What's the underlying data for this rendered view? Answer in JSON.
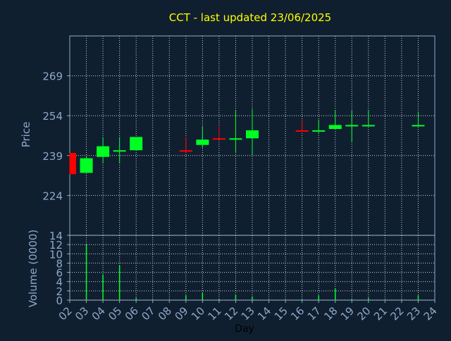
{
  "chart_data": {
    "type": "candlestick",
    "title": "CCT - last updated 23/06/2025",
    "xlabel": "Day",
    "colors": {
      "background": "#0f1f30",
      "title": "#ffff00",
      "axis_text": "#8fa8c8",
      "grid": "#c8d4e0",
      "up": "#00ff22",
      "down": "#ff0000",
      "volume": "#00ff22"
    },
    "price_panel": {
      "ylabel": "Price",
      "ylim": [
        209,
        284
      ],
      "yticks": [
        224,
        239,
        254,
        269
      ],
      "grid": true
    },
    "volume_panel": {
      "ylabel": "Volume (0000)",
      "ylim": [
        0,
        14
      ],
      "yticks": [
        0,
        2,
        4,
        6,
        8,
        10,
        12,
        14
      ],
      "grid": true
    },
    "x_categories": [
      "02",
      "03",
      "04",
      "05",
      "06",
      "07",
      "08",
      "09",
      "10",
      "11",
      "12",
      "13",
      "14",
      "15",
      "16",
      "17",
      "18",
      "19",
      "20",
      "21",
      "22",
      "23",
      "24"
    ],
    "candles": [
      {
        "day": "02",
        "open": 240.0,
        "high": 240.0,
        "low": 232.0,
        "close": 232.0,
        "volume": 0.0
      },
      {
        "day": "03",
        "open": 232.5,
        "high": 238.5,
        "low": 232.5,
        "close": 238.0,
        "volume": 12.0
      },
      {
        "day": "04",
        "open": 238.5,
        "high": 246.0,
        "low": 236.0,
        "close": 242.5,
        "volume": 5.5
      },
      {
        "day": "05",
        "open": 240.5,
        "high": 246.0,
        "low": 236.0,
        "close": 241.0,
        "volume": 7.5
      },
      {
        "day": "06",
        "open": 241.0,
        "high": 246.0,
        "low": 241.0,
        "close": 246.0,
        "volume": 0.5
      },
      {
        "day": "09",
        "open": 241.0,
        "high": 246.0,
        "low": 240.0,
        "close": 240.5,
        "volume": 1.0
      },
      {
        "day": "10",
        "open": 243.0,
        "high": 250.0,
        "low": 242.0,
        "close": 245.0,
        "volume": 1.5
      },
      {
        "day": "11",
        "open": 245.5,
        "high": 250.0,
        "low": 245.0,
        "close": 245.0,
        "volume": 0.3
      },
      {
        "day": "12",
        "open": 245.0,
        "high": 256.0,
        "low": 240.0,
        "close": 245.5,
        "volume": 1.2
      },
      {
        "day": "13",
        "open": 245.5,
        "high": 256.5,
        "low": 239.5,
        "close": 248.5,
        "volume": 0.8
      },
      {
        "day": "16",
        "open": 248.5,
        "high": 252.5,
        "low": 248.0,
        "close": 248.0,
        "volume": 0.3
      },
      {
        "day": "17",
        "open": 248.0,
        "high": 252.5,
        "low": 247.5,
        "close": 248.5,
        "volume": 1.0
      },
      {
        "day": "18",
        "open": 249.0,
        "high": 256.0,
        "low": 249.0,
        "close": 250.5,
        "volume": 2.5
      },
      {
        "day": "19",
        "open": 250.5,
        "high": 256.0,
        "low": 244.0,
        "close": 250.5,
        "volume": 0.3
      },
      {
        "day": "20",
        "open": 250.5,
        "high": 256.0,
        "low": 250.0,
        "close": 250.5,
        "volume": 0.5
      },
      {
        "day": "23",
        "open": 250.5,
        "high": 255.5,
        "low": 250.0,
        "close": 250.5,
        "volume": 1.0
      }
    ]
  }
}
